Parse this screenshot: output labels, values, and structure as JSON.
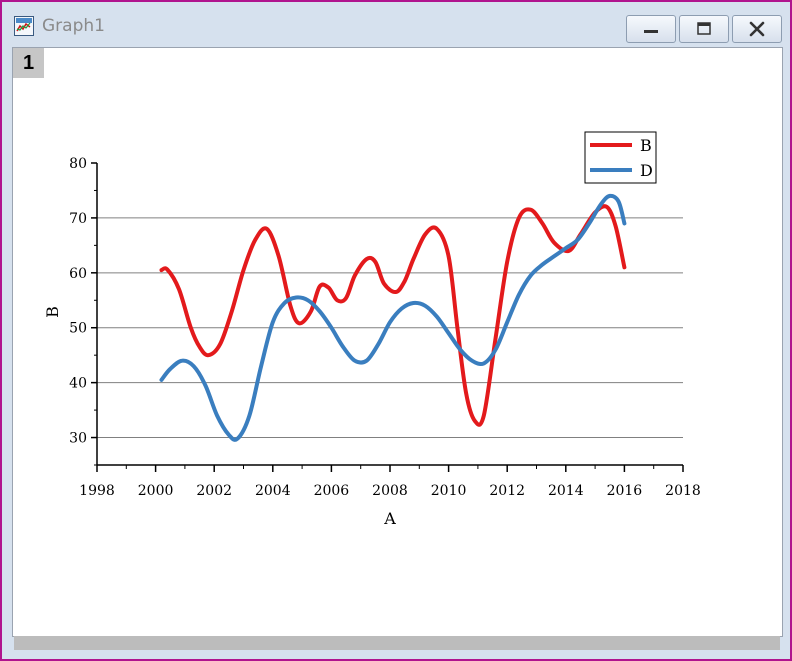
{
  "window": {
    "title": "Graph1",
    "layer_label": "1",
    "icons": {
      "app": "graph-window-icon",
      "minimize": "minimize-icon",
      "maximize": "maximize-icon",
      "close": "close-icon"
    }
  },
  "chart_data": {
    "type": "line",
    "title": "",
    "xlabel": "A",
    "ylabel": "B",
    "xlim": [
      1998,
      2018
    ],
    "ylim": [
      25,
      80
    ],
    "x_ticks": [
      1998,
      2000,
      2002,
      2004,
      2006,
      2008,
      2010,
      2012,
      2014,
      2016,
      2018
    ],
    "y_ticks": [
      30,
      40,
      50,
      60,
      70,
      80
    ],
    "grid": "horizontal",
    "legend_position": "top-right",
    "series": [
      {
        "name": "B",
        "color": "#e31a1c",
        "x": [
          2000.2,
          2000.4,
          2000.8,
          2001.2,
          2001.5,
          2001.8,
          2002.2,
          2002.6,
          2003.0,
          2003.4,
          2003.8,
          2004.2,
          2004.6,
          2004.9,
          2005.3,
          2005.6,
          2005.9,
          2006.2,
          2006.5,
          2006.8,
          2007.2,
          2007.5,
          2007.8,
          2008.2,
          2008.5,
          2008.8,
          2009.2,
          2009.6,
          2010.0,
          2010.3,
          2010.6,
          2010.9,
          2011.2,
          2011.6,
          2012.0,
          2012.4,
          2012.8,
          2013.2,
          2013.6,
          2014.1,
          2014.5,
          2015.0,
          2015.4,
          2015.7,
          2016.0
        ],
        "y": [
          60.5,
          60.6,
          57,
          50,
          46.5,
          45,
          47,
          53,
          60.5,
          66,
          68,
          63,
          54,
          50.8,
          53,
          57.5,
          57.3,
          55,
          55.4,
          59.5,
          62.5,
          62,
          58,
          56.5,
          58.5,
          62.5,
          67,
          68,
          63,
          50,
          38,
          33,
          34,
          48,
          62,
          70,
          71.5,
          69,
          65.5,
          64,
          67,
          71,
          72,
          68.5,
          61
        ]
      },
      {
        "name": "D",
        "color": "#3a7ebf",
        "x": [
          2000.2,
          2000.5,
          2000.9,
          2001.3,
          2001.7,
          2002.1,
          2002.5,
          2002.8,
          2003.2,
          2003.6,
          2004.0,
          2004.4,
          2004.8,
          2005.2,
          2005.6,
          2006.0,
          2006.4,
          2006.8,
          2007.2,
          2007.6,
          2008.0,
          2008.4,
          2008.8,
          2009.2,
          2009.6,
          2010.0,
          2010.4,
          2010.8,
          2011.2,
          2011.6,
          2012.0,
          2012.4,
          2012.8,
          2013.2,
          2013.6,
          2014.0,
          2014.4,
          2014.8,
          2015.2,
          2015.5,
          2015.8,
          2016.0
        ],
        "y": [
          40.5,
          42.5,
          44,
          43,
          39.5,
          34,
          30.5,
          29.8,
          34,
          43,
          51,
          54.5,
          55.5,
          55,
          53,
          50,
          46.5,
          44,
          44,
          47,
          51,
          53.5,
          54.5,
          54,
          52,
          49,
          46,
          44,
          43.5,
          46,
          51,
          56,
          59.5,
          61.5,
          63,
          64.5,
          66,
          69,
          72.5,
          74,
          73,
          69
        ]
      }
    ]
  }
}
